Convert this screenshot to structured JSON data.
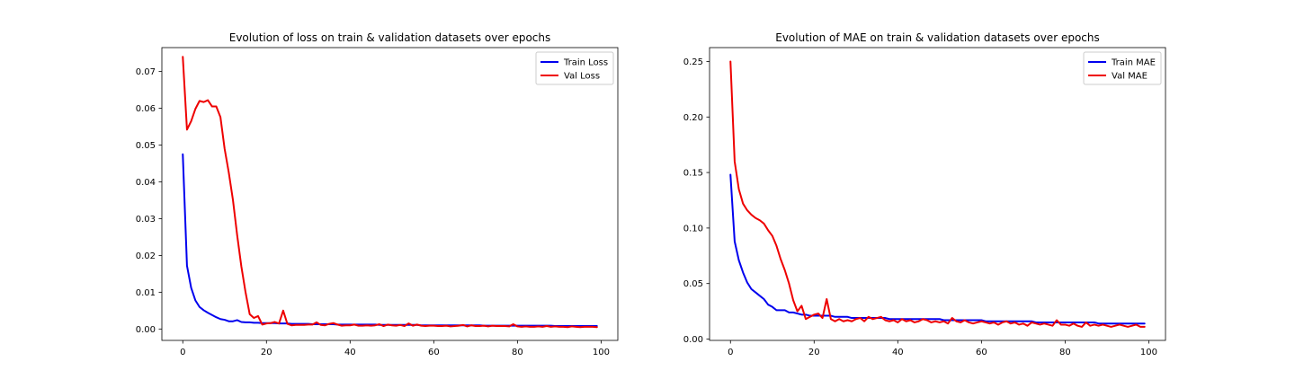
{
  "chart_data": [
    {
      "type": "line",
      "title": "Evolution of loss on train & validation datasets over epochs",
      "xlabel": "",
      "ylabel": "",
      "xlim": [
        -5,
        104
      ],
      "ylim": [
        -0.0031,
        0.0765
      ],
      "x_ticks": [
        0,
        20,
        40,
        60,
        80,
        100
      ],
      "x_tick_labels": [
        "0",
        "20",
        "40",
        "60",
        "80",
        "100"
      ],
      "y_ticks": [
        0.0,
        0.01,
        0.02,
        0.03,
        0.04,
        0.05,
        0.06,
        0.07
      ],
      "y_tick_labels": [
        "0.00",
        "0.01",
        "0.02",
        "0.03",
        "0.04",
        "0.05",
        "0.06",
        "0.07"
      ],
      "grid": false,
      "legend_position": "top-right",
      "series": [
        {
          "name": "Train Loss",
          "color": "#0000ee",
          "x": [
            0,
            1,
            2,
            3,
            4,
            5,
            6,
            7,
            8,
            9,
            10,
            11,
            12,
            13,
            14,
            15,
            16,
            17,
            18,
            19,
            20,
            21,
            22,
            23,
            24,
            25,
            26,
            27,
            28,
            29,
            30,
            31,
            32,
            33,
            34,
            35,
            36,
            37,
            38,
            39,
            40,
            41,
            42,
            43,
            44,
            45,
            46,
            47,
            48,
            49,
            50,
            51,
            52,
            53,
            54,
            55,
            56,
            57,
            58,
            59,
            60,
            61,
            62,
            63,
            64,
            65,
            66,
            67,
            68,
            69,
            70,
            71,
            72,
            73,
            74,
            75,
            76,
            77,
            78,
            79,
            80,
            81,
            82,
            83,
            84,
            85,
            86,
            87,
            88,
            89,
            90,
            91,
            92,
            93,
            94,
            95,
            96,
            97,
            98,
            99
          ],
          "y": [
            0.0475,
            0.0172,
            0.0112,
            0.0078,
            0.006,
            0.0051,
            0.0044,
            0.0038,
            0.0032,
            0.0027,
            0.0025,
            0.0021,
            0.0021,
            0.0024,
            0.0019,
            0.0018,
            0.0018,
            0.0017,
            0.0017,
            0.0016,
            0.0016,
            0.0016,
            0.0016,
            0.0015,
            0.0015,
            0.0015,
            0.0014,
            0.0014,
            0.0014,
            0.0014,
            0.0014,
            0.0013,
            0.0013,
            0.0013,
            0.0013,
            0.0013,
            0.0013,
            0.0012,
            0.0012,
            0.0012,
            0.0012,
            0.0012,
            0.0012,
            0.0012,
            0.0012,
            0.0012,
            0.0012,
            0.0011,
            0.0011,
            0.0011,
            0.0011,
            0.0011,
            0.0011,
            0.0011,
            0.0011,
            0.0011,
            0.0011,
            0.001,
            0.001,
            0.001,
            0.001,
            0.001,
            0.001,
            0.001,
            0.001,
            0.001,
            0.001,
            0.001,
            0.001,
            0.001,
            0.001,
            0.001,
            0.0009,
            0.0009,
            0.0009,
            0.0009,
            0.0009,
            0.0009,
            0.0009,
            0.0009,
            0.0009,
            0.0009,
            0.0009,
            0.0009,
            0.0009,
            0.0009,
            0.0009,
            0.0009,
            0.0009,
            0.0008,
            0.0008,
            0.0008,
            0.0008,
            0.0008,
            0.0008,
            0.0008,
            0.0008,
            0.0008,
            0.0008,
            0.0008
          ]
        },
        {
          "name": "Val Loss",
          "color": "#ee0000",
          "x": [
            0,
            1,
            2,
            3,
            4,
            5,
            6,
            7,
            8,
            9,
            10,
            11,
            12,
            13,
            14,
            15,
            16,
            17,
            18,
            19,
            20,
            21,
            22,
            23,
            24,
            25,
            26,
            27,
            28,
            29,
            30,
            31,
            32,
            33,
            34,
            35,
            36,
            37,
            38,
            39,
            40,
            41,
            42,
            43,
            44,
            45,
            46,
            47,
            48,
            49,
            50,
            51,
            52,
            53,
            54,
            55,
            56,
            57,
            58,
            59,
            60,
            61,
            62,
            63,
            64,
            65,
            66,
            67,
            68,
            69,
            70,
            71,
            72,
            73,
            74,
            75,
            76,
            77,
            78,
            79,
            80,
            81,
            82,
            83,
            84,
            85,
            86,
            87,
            88,
            89,
            90,
            91,
            92,
            93,
            94,
            95,
            96,
            97,
            98,
            99
          ],
          "y": [
            0.074,
            0.0542,
            0.0565,
            0.0598,
            0.062,
            0.0617,
            0.0622,
            0.0605,
            0.0605,
            0.0576,
            0.049,
            0.0425,
            0.035,
            0.0255,
            0.017,
            0.01,
            0.004,
            0.003,
            0.0035,
            0.0012,
            0.0015,
            0.0016,
            0.0019,
            0.0015,
            0.005,
            0.0014,
            0.001,
            0.0011,
            0.0011,
            0.0011,
            0.0012,
            0.0012,
            0.0018,
            0.0011,
            0.001,
            0.0014,
            0.0016,
            0.0012,
            0.0009,
            0.001,
            0.001,
            0.0012,
            0.0009,
            0.0009,
            0.001,
            0.0009,
            0.001,
            0.0013,
            0.0008,
            0.0012,
            0.001,
            0.0009,
            0.0011,
            0.0008,
            0.0015,
            0.0009,
            0.0012,
            0.0009,
            0.0008,
            0.0009,
            0.0009,
            0.0008,
            0.0008,
            0.0009,
            0.0007,
            0.0008,
            0.0009,
            0.0011,
            0.0007,
            0.001,
            0.0008,
            0.0008,
            0.0009,
            0.0007,
            0.0009,
            0.0008,
            0.0008,
            0.0008,
            0.0007,
            0.0013,
            0.0007,
            0.0006,
            0.0007,
            0.0006,
            0.0006,
            0.0007,
            0.0006,
            0.0008,
            0.0006,
            0.0007,
            0.0006,
            0.0006,
            0.0005,
            0.0007,
            0.0006,
            0.0005,
            0.0006,
            0.0006,
            0.0006,
            0.0005
          ]
        }
      ]
    },
    {
      "type": "line",
      "title": "Evolution of MAE on train & validation datasets over epochs",
      "xlabel": "",
      "ylabel": "",
      "xlim": [
        -5,
        104
      ],
      "ylim": [
        -0.0012,
        0.2625
      ],
      "x_ticks": [
        0,
        20,
        40,
        60,
        80,
        100
      ],
      "x_tick_labels": [
        "0",
        "20",
        "40",
        "60",
        "80",
        "100"
      ],
      "y_ticks": [
        0.0,
        0.05,
        0.1,
        0.15,
        0.2,
        0.25
      ],
      "y_tick_labels": [
        "0.00",
        "0.05",
        "0.10",
        "0.15",
        "0.20",
        "0.25"
      ],
      "grid": false,
      "legend_position": "top-right",
      "series": [
        {
          "name": "Train MAE",
          "color": "#0000ee",
          "x": [
            0,
            1,
            2,
            3,
            4,
            5,
            6,
            7,
            8,
            9,
            10,
            11,
            12,
            13,
            14,
            15,
            16,
            17,
            18,
            19,
            20,
            21,
            22,
            23,
            24,
            25,
            26,
            27,
            28,
            29,
            30,
            31,
            32,
            33,
            34,
            35,
            36,
            37,
            38,
            39,
            40,
            41,
            42,
            43,
            44,
            45,
            46,
            47,
            48,
            49,
            50,
            51,
            52,
            53,
            54,
            55,
            56,
            57,
            58,
            59,
            60,
            61,
            62,
            63,
            64,
            65,
            66,
            67,
            68,
            69,
            70,
            71,
            72,
            73,
            74,
            75,
            76,
            77,
            78,
            79,
            80,
            81,
            82,
            83,
            84,
            85,
            86,
            87,
            88,
            89,
            90,
            91,
            92,
            93,
            94,
            95,
            96,
            97,
            98,
            99
          ],
          "y": [
            0.148,
            0.088,
            0.071,
            0.06,
            0.051,
            0.045,
            0.042,
            0.039,
            0.036,
            0.031,
            0.029,
            0.026,
            0.026,
            0.026,
            0.024,
            0.024,
            0.023,
            0.022,
            0.022,
            0.021,
            0.021,
            0.021,
            0.021,
            0.021,
            0.021,
            0.02,
            0.02,
            0.02,
            0.02,
            0.019,
            0.019,
            0.019,
            0.019,
            0.019,
            0.019,
            0.019,
            0.019,
            0.019,
            0.018,
            0.018,
            0.018,
            0.018,
            0.018,
            0.018,
            0.018,
            0.018,
            0.018,
            0.018,
            0.018,
            0.018,
            0.018,
            0.017,
            0.017,
            0.017,
            0.017,
            0.017,
            0.017,
            0.017,
            0.017,
            0.017,
            0.017,
            0.016,
            0.016,
            0.016,
            0.016,
            0.016,
            0.016,
            0.016,
            0.016,
            0.016,
            0.016,
            0.016,
            0.016,
            0.015,
            0.015,
            0.015,
            0.015,
            0.015,
            0.015,
            0.015,
            0.015,
            0.015,
            0.015,
            0.015,
            0.015,
            0.015,
            0.015,
            0.015,
            0.014,
            0.014,
            0.014,
            0.014,
            0.014,
            0.014,
            0.014,
            0.014,
            0.014,
            0.014,
            0.014,
            0.014
          ]
        },
        {
          "name": "Val MAE",
          "color": "#ee0000",
          "x": [
            0,
            1,
            2,
            3,
            4,
            5,
            6,
            7,
            8,
            9,
            10,
            11,
            12,
            13,
            14,
            15,
            16,
            17,
            18,
            19,
            20,
            21,
            22,
            23,
            24,
            25,
            26,
            27,
            28,
            29,
            30,
            31,
            32,
            33,
            34,
            35,
            36,
            37,
            38,
            39,
            40,
            41,
            42,
            43,
            44,
            45,
            46,
            47,
            48,
            49,
            50,
            51,
            52,
            53,
            54,
            55,
            56,
            57,
            58,
            59,
            60,
            61,
            62,
            63,
            64,
            65,
            66,
            67,
            68,
            69,
            70,
            71,
            72,
            73,
            74,
            75,
            76,
            77,
            78,
            79,
            80,
            81,
            82,
            83,
            84,
            85,
            86,
            87,
            88,
            89,
            90,
            91,
            92,
            93,
            94,
            95,
            96,
            97,
            98,
            99
          ],
          "y": [
            0.25,
            0.16,
            0.135,
            0.122,
            0.116,
            0.112,
            0.109,
            0.107,
            0.104,
            0.098,
            0.093,
            0.084,
            0.072,
            0.062,
            0.05,
            0.035,
            0.025,
            0.03,
            0.018,
            0.02,
            0.022,
            0.023,
            0.019,
            0.036,
            0.018,
            0.016,
            0.018,
            0.016,
            0.017,
            0.016,
            0.018,
            0.019,
            0.016,
            0.02,
            0.018,
            0.019,
            0.02,
            0.017,
            0.016,
            0.017,
            0.015,
            0.018,
            0.016,
            0.017,
            0.015,
            0.016,
            0.018,
            0.017,
            0.015,
            0.016,
            0.015,
            0.016,
            0.014,
            0.019,
            0.016,
            0.015,
            0.017,
            0.015,
            0.014,
            0.015,
            0.016,
            0.015,
            0.014,
            0.015,
            0.013,
            0.015,
            0.016,
            0.014,
            0.015,
            0.013,
            0.014,
            0.012,
            0.015,
            0.014,
            0.013,
            0.014,
            0.013,
            0.012,
            0.017,
            0.013,
            0.013,
            0.012,
            0.014,
            0.012,
            0.011,
            0.015,
            0.012,
            0.013,
            0.012,
            0.013,
            0.012,
            0.011,
            0.012,
            0.013,
            0.012,
            0.011,
            0.012,
            0.013,
            0.011,
            0.011
          ]
        }
      ]
    }
  ]
}
